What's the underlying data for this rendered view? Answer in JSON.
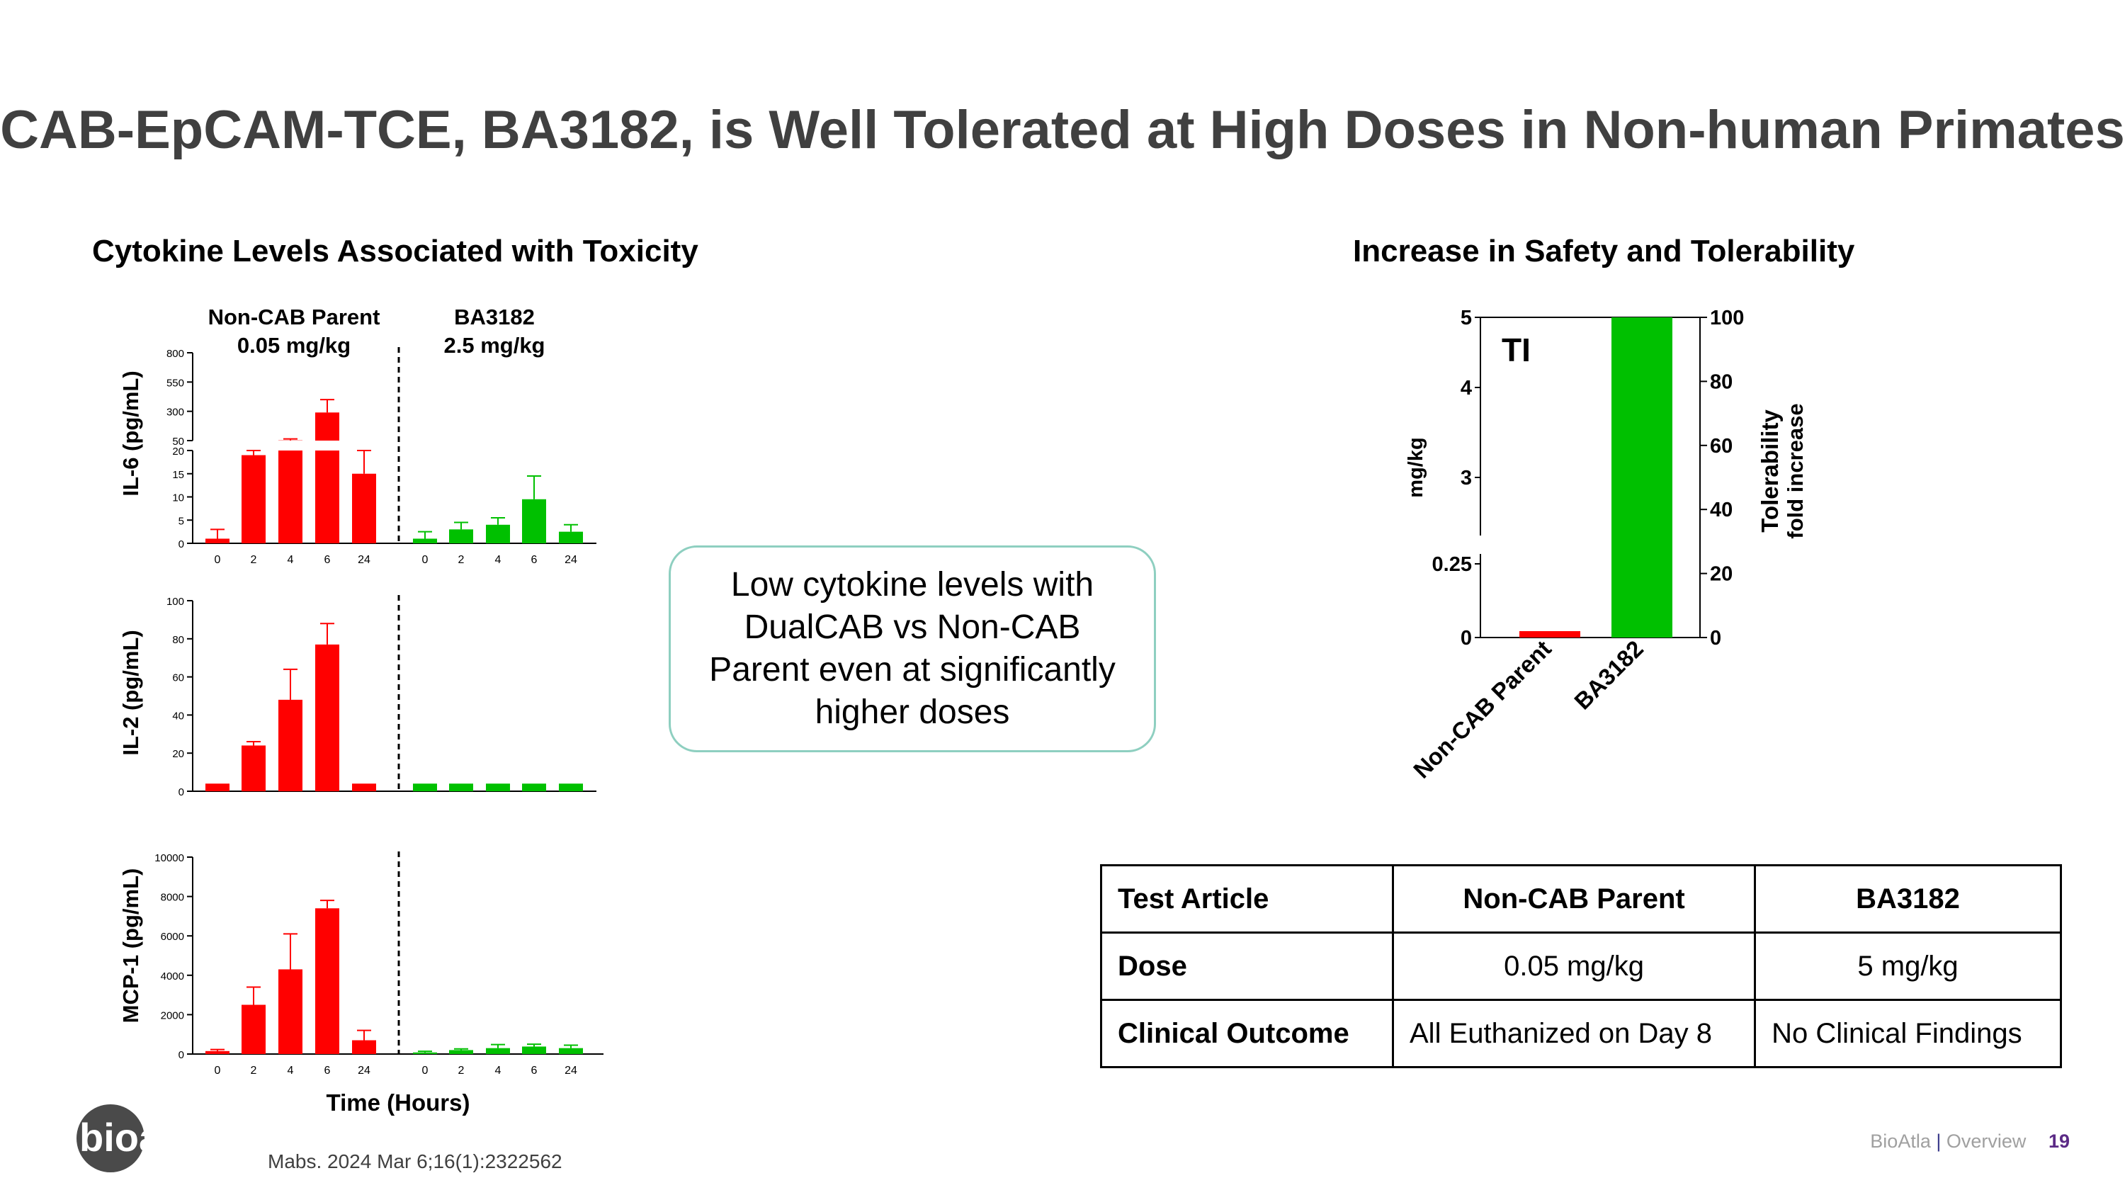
{
  "slide": {
    "title": "CAB-EpCAM-TCE, BA3182, is Well Tolerated at High Doses in Non-human Primates",
    "left_heading": "Cytokine Levels Associated with Toxicity",
    "right_heading": "Increase in Safety and Tolerability",
    "callout": "Low cytokine levels with DualCAB vs Non-CAB Parent even at significantly higher doses",
    "citation": "Mabs. 2024 Mar 6;16(1):2322562",
    "footer_company": "BioAtla",
    "footer_separator": "|",
    "footer_section": "Overview",
    "page_number": "19",
    "logo_text": "bioatla"
  },
  "colors": {
    "red": "#ff0000",
    "green": "#00c000",
    "title": "#404040",
    "callout_border": "#8ecfc0"
  },
  "table": {
    "headers": [
      "Test Article",
      "Non-CAB Parent",
      "BA3182"
    ],
    "rows": [
      [
        "Dose",
        "0.05 mg/kg",
        "5 mg/kg"
      ],
      [
        "Clinical Outcome",
        "All Euthanized on Day 8",
        "No Clinical Findings"
      ]
    ]
  },
  "chart_data": [
    {
      "id": "il6",
      "type": "bar",
      "ylabel": "IL-6 (pg/mL)",
      "xlabel": "",
      "group_labels": [
        {
          "name": "Non-CAB Parent",
          "dose": "0.05 mg/kg"
        },
        {
          "name": "BA3182",
          "dose": "2.5 mg/kg"
        }
      ],
      "categories": [
        "0",
        "2",
        "4",
        "6",
        "24"
      ],
      "axis_break": true,
      "lower_range": [
        0,
        20
      ],
      "lower_ticks": [
        "0",
        "5",
        "10",
        "15",
        "20"
      ],
      "upper_range": [
        50,
        800
      ],
      "upper_ticks": [
        "50",
        "300",
        "550",
        "800"
      ],
      "series": [
        {
          "name": "Non-CAB Parent",
          "color": "#ff0000",
          "values": [
            1,
            19,
            52,
            290,
            15
          ],
          "errors": [
            2,
            1,
            12,
            110,
            5
          ]
        },
        {
          "name": "BA3182",
          "color": "#00c000",
          "values": [
            1,
            3,
            4,
            9.5,
            2.5
          ],
          "errors": [
            1.5,
            1.5,
            1.5,
            5,
            1.5
          ]
        }
      ]
    },
    {
      "id": "il2",
      "type": "bar",
      "ylabel": "IL-2 (pg/mL)",
      "xlabel": "",
      "categories": [
        "0",
        "2",
        "4",
        "6",
        "24"
      ],
      "ylim": [
        0,
        100
      ],
      "ticks": [
        "0",
        "20",
        "40",
        "60",
        "80",
        "100"
      ],
      "series": [
        {
          "name": "Non-CAB Parent",
          "color": "#ff0000",
          "values": [
            4,
            24,
            48,
            77,
            4
          ],
          "errors": [
            0,
            2,
            16,
            11,
            0
          ]
        },
        {
          "name": "BA3182",
          "color": "#00c000",
          "values": [
            4,
            4,
            4,
            4,
            4
          ],
          "errors": [
            0,
            0,
            0,
            0,
            0
          ]
        }
      ]
    },
    {
      "id": "mcp1",
      "type": "bar",
      "ylabel": "MCP-1 (pg/mL)",
      "xlabel": "Time (Hours)",
      "categories": [
        "0",
        "2",
        "4",
        "6",
        "24"
      ],
      "ylim": [
        0,
        10000
      ],
      "ticks": [
        "0",
        "2000",
        "4000",
        "6000",
        "8000",
        "10000"
      ],
      "series": [
        {
          "name": "Non-CAB Parent",
          "color": "#ff0000",
          "values": [
            150,
            2500,
            4300,
            7400,
            700
          ],
          "errors": [
            80,
            900,
            1800,
            400,
            500
          ]
        },
        {
          "name": "BA3182",
          "color": "#00c000",
          "values": [
            80,
            200,
            300,
            380,
            300
          ],
          "errors": [
            60,
            60,
            180,
            120,
            150
          ]
        }
      ]
    },
    {
      "id": "ti",
      "type": "bar",
      "annotation": "TI",
      "categories": [
        "Non-CAB Parent",
        "BA3182"
      ],
      "colors": [
        "#ff0000",
        "#00c000"
      ],
      "left_axis": {
        "label": "mg/kg",
        "ticks": [
          "0",
          "0.25",
          "3",
          "4",
          "5"
        ]
      },
      "right_axis": {
        "label_line1": "Tolerability",
        "label_line2": "fold increase",
        "range": [
          0,
          100
        ],
        "ticks": [
          "0",
          "20",
          "40",
          "60",
          "80",
          "100"
        ]
      },
      "values_fold": [
        2,
        100
      ]
    }
  ]
}
